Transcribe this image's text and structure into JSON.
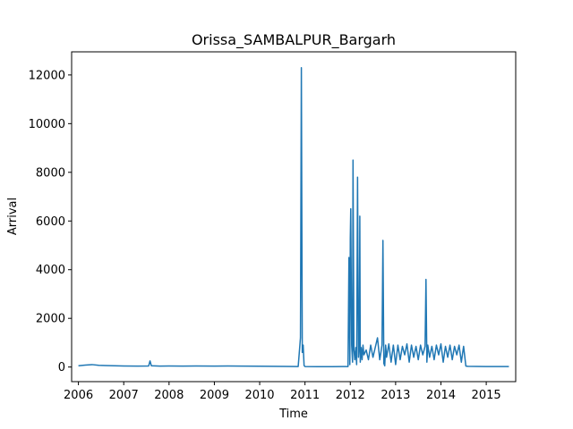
{
  "chart_data": {
    "type": "line",
    "title": "Orissa_SAMBALPUR_Bargarh",
    "xlabel": "Time",
    "ylabel": "Arrival",
    "xlim": [
      2005.85,
      2015.65
    ],
    "ylim": [
      -600,
      12950
    ],
    "x_ticks": [
      2006,
      2007,
      2008,
      2009,
      2010,
      2011,
      2012,
      2013,
      2014,
      2015
    ],
    "x_tick_labels": [
      "2006",
      "2007",
      "2008",
      "2009",
      "2010",
      "2011",
      "2012",
      "2013",
      "2014",
      "2015"
    ],
    "y_ticks": [
      0,
      2000,
      4000,
      6000,
      8000,
      10000,
      12000
    ],
    "y_tick_labels": [
      "0",
      "2000",
      "4000",
      "6000",
      "8000",
      "10000",
      "12000"
    ],
    "grid": false,
    "color": "#1f77b4",
    "series": [
      {
        "name": "",
        "x": [
          2006.0,
          2006.15,
          2006.3,
          2006.45,
          2006.6,
          2006.8,
          2007.0,
          2007.3,
          2007.55,
          2007.58,
          2007.61,
          2007.8,
          2008.0,
          2008.3,
          2008.6,
          2009.0,
          2009.3,
          2009.6,
          2010.0,
          2010.3,
          2010.6,
          2010.85,
          2010.9,
          2010.92,
          2010.94,
          2010.96,
          2010.98,
          2011.0,
          2011.3,
          2011.6,
          2011.95,
          2011.97,
          2011.99,
          2012.0,
          2012.01,
          2012.03,
          2012.05,
          2012.06,
          2012.08,
          2012.1,
          2012.12,
          2012.14,
          2012.16,
          2012.18,
          2012.2,
          2012.21,
          2012.22,
          2012.24,
          2012.26,
          2012.28,
          2012.3,
          2012.35,
          2012.4,
          2012.45,
          2012.5,
          2012.55,
          2012.6,
          2012.65,
          2012.7,
          2012.72,
          2012.74,
          2012.76,
          2012.78,
          2012.8,
          2012.85,
          2012.9,
          2012.95,
          2013.0,
          2013.05,
          2013.1,
          2013.15,
          2013.2,
          2013.25,
          2013.3,
          2013.35,
          2013.4,
          2013.45,
          2013.5,
          2013.55,
          2013.6,
          2013.65,
          2013.67,
          2013.69,
          2013.71,
          2013.75,
          2013.8,
          2013.85,
          2013.9,
          2013.95,
          2014.0,
          2014.05,
          2014.1,
          2014.15,
          2014.2,
          2014.25,
          2014.3,
          2014.35,
          2014.4,
          2014.45,
          2014.5,
          2014.55,
          2014.6,
          2014.8,
          2015.0,
          2015.2,
          2015.5
        ],
        "y": [
          50,
          80,
          100,
          70,
          60,
          50,
          45,
          40,
          45,
          250,
          50,
          40,
          45,
          40,
          45,
          40,
          45,
          40,
          35,
          30,
          25,
          20,
          1200,
          12300,
          600,
          900,
          60,
          20,
          15,
          15,
          20,
          4500,
          100,
          5300,
          6500,
          900,
          200,
          8500,
          700,
          300,
          800,
          100,
          7800,
          400,
          900,
          6200,
          200,
          800,
          300,
          900,
          500,
          700,
          300,
          900,
          400,
          800,
          1200,
          300,
          900,
          5200,
          150,
          50,
          900,
          400,
          950,
          200,
          900,
          100,
          900,
          300,
          850,
          500,
          950,
          200,
          900,
          400,
          850,
          300,
          900,
          500,
          850,
          3600,
          200,
          900,
          400,
          850,
          300,
          900,
          500,
          950,
          200,
          850,
          400,
          900,
          300,
          850,
          500,
          900,
          200,
          850,
          40,
          30,
          25,
          20,
          20,
          20
        ]
      }
    ]
  }
}
